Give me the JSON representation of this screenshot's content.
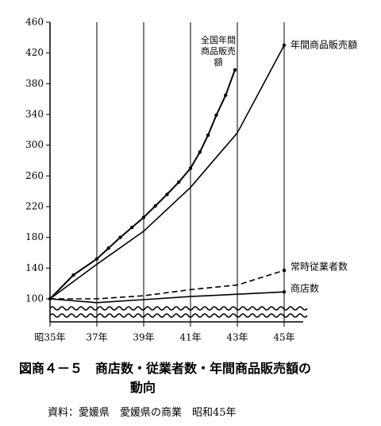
{
  "chart_data": {
    "type": "line",
    "title_lines": [
      "図商４－５　商店数・従業者数・年間商品販売額の",
      "動向"
    ],
    "source": "資料：愛媛県　愛媛県の商業　昭和45年",
    "x": [
      35,
      37,
      39,
      41,
      43,
      45
    ],
    "xlim": [
      35,
      45
    ],
    "xticks": [
      {
        "value": 35,
        "label": "昭35年"
      },
      {
        "value": 37,
        "label": "37年"
      },
      {
        "value": 39,
        "label": "39年"
      },
      {
        "value": 41,
        "label": "41年"
      },
      {
        "value": 43,
        "label": "43年"
      },
      {
        "value": 45,
        "label": "45年"
      }
    ],
    "ylim": [
      100,
      460
    ],
    "yticks": [
      100,
      140,
      180,
      220,
      260,
      300,
      340,
      380,
      420,
      460
    ],
    "grid": true,
    "series": [
      {
        "name": "全国年間商品販売額",
        "color": "#000000",
        "style": "dotted-markers",
        "x": [
          35,
          36,
          37,
          37.5,
          38,
          38.5,
          39,
          39.5,
          40,
          40.5,
          41,
          41.4,
          41.75,
          42.1,
          42.5,
          42.9
        ],
        "values": [
          100,
          131,
          152,
          166,
          180,
          193,
          206,
          221,
          236,
          252,
          270,
          291,
          313,
          339,
          365,
          398
        ]
      },
      {
        "name": "年間商品販売額",
        "color": "#000000",
        "style": "solid",
        "values": [
          100,
          145,
          188,
          245,
          316,
          430
        ]
      },
      {
        "name": "常時従業者数",
        "color": "#000000",
        "style": "dashed",
        "values": [
          100,
          100,
          104,
          112,
          118,
          137
        ]
      },
      {
        "name": "商店数",
        "color": "#000000",
        "style": "solid",
        "values": [
          100,
          95,
          99,
          103,
          106,
          109
        ]
      }
    ]
  }
}
